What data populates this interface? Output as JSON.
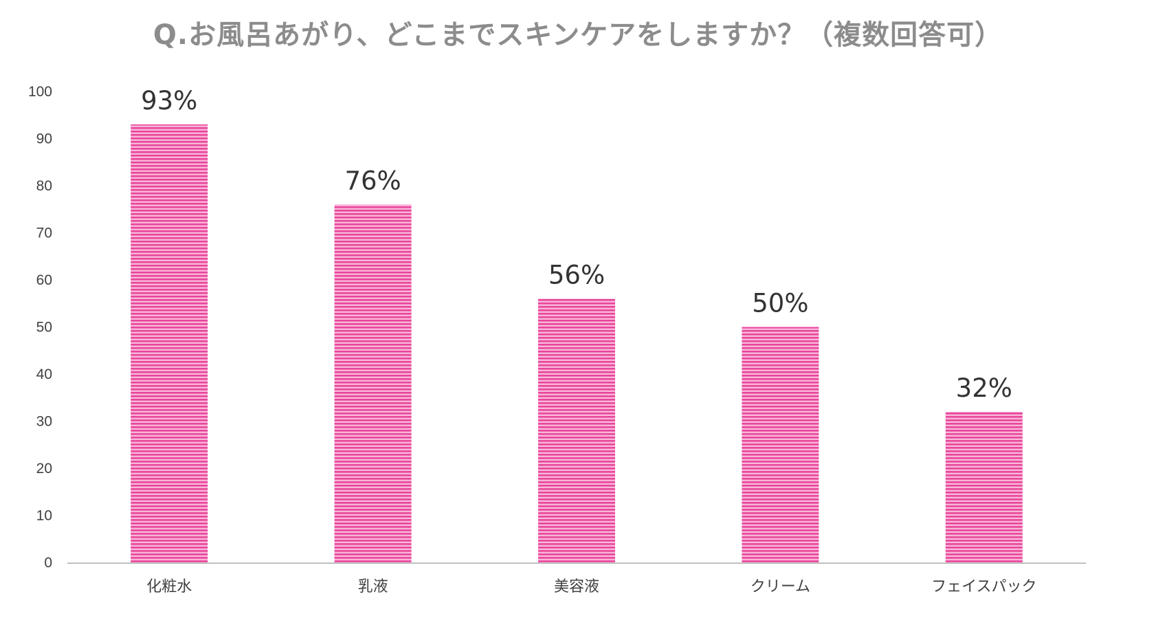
{
  "chart_data": {
    "type": "bar",
    "title": "Q.お風呂あがり、どこまでスキンケアをしますか？（複数回答可）",
    "categories": [
      "化粧水",
      "乳液",
      "美容液",
      "クリーム",
      "フェイスパック"
    ],
    "values": [
      93,
      76,
      56,
      50,
      32
    ],
    "data_labels": [
      "93%",
      "76%",
      "56%",
      "50%",
      "32%"
    ],
    "ylim": [
      0,
      100
    ],
    "yticks": [
      "0",
      "10",
      "20",
      "30",
      "40",
      "50",
      "60",
      "70",
      "80",
      "90",
      "100"
    ],
    "grid": false,
    "legend": "none",
    "bar_color": "#e8449a",
    "bar_stripe_color": "#f9b5d8"
  }
}
